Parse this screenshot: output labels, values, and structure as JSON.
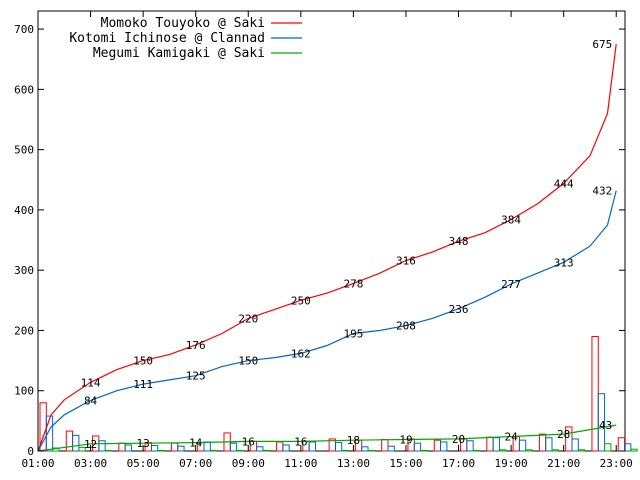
{
  "chart_data": {
    "type": "line",
    "title": "",
    "xlabel": "",
    "ylabel": "",
    "ylim": [
      0,
      730
    ],
    "yticks": [
      0,
      100,
      200,
      300,
      400,
      500,
      600,
      700
    ],
    "xticks": [
      "01:00",
      "03:00",
      "05:00",
      "07:00",
      "09:00",
      "11:00",
      "13:00",
      "15:00",
      "17:00",
      "19:00",
      "21:00",
      "23:00"
    ],
    "grid": false,
    "legend_position": "top-left",
    "series": [
      {
        "name": "Momoko Touyoko @ Saki",
        "color": "#ff0000",
        "cumulative": [
          {
            "t": "01:00",
            "v": 0
          },
          {
            "t": "01:30",
            "v": 60
          },
          {
            "t": "02:00",
            "v": 85
          },
          {
            "t": "03:00",
            "v": 114
          },
          {
            "t": "04:00",
            "v": 135
          },
          {
            "t": "05:00",
            "v": 150
          },
          {
            "t": "06:00",
            "v": 160
          },
          {
            "t": "07:00",
            "v": 176
          },
          {
            "t": "08:00",
            "v": 195
          },
          {
            "t": "09:00",
            "v": 220
          },
          {
            "t": "10:00",
            "v": 235
          },
          {
            "t": "11:00",
            "v": 250
          },
          {
            "t": "12:00",
            "v": 262
          },
          {
            "t": "13:00",
            "v": 278
          },
          {
            "t": "14:00",
            "v": 295
          },
          {
            "t": "15:00",
            "v": 316
          },
          {
            "t": "16:00",
            "v": 330
          },
          {
            "t": "17:00",
            "v": 348
          },
          {
            "t": "18:00",
            "v": 362
          },
          {
            "t": "19:00",
            "v": 384
          },
          {
            "t": "20:00",
            "v": 410
          },
          {
            "t": "21:00",
            "v": 444
          },
          {
            "t": "22:00",
            "v": 490
          },
          {
            "t": "22:40",
            "v": 560
          },
          {
            "t": "23:00",
            "v": 675
          }
        ],
        "hourly": [
          80,
          33,
          25,
          13,
          14,
          13,
          14,
          30,
          16,
          15,
          16,
          20,
          18,
          19,
          20,
          18,
          20,
          23,
          24,
          28,
          40,
          190,
          22
        ],
        "labels": [
          {
            "t": "03:00",
            "text": "114"
          },
          {
            "t": "05:00",
            "text": "150"
          },
          {
            "t": "07:00",
            "text": "176"
          },
          {
            "t": "09:00",
            "text": "220"
          },
          {
            "t": "11:00",
            "text": "250"
          },
          {
            "t": "13:00",
            "text": "278"
          },
          {
            "t": "15:00",
            "text": "316"
          },
          {
            "t": "17:00",
            "text": "348"
          },
          {
            "t": "19:00",
            "text": "384"
          },
          {
            "t": "21:00",
            "text": "444"
          },
          {
            "t": "23:00",
            "text": "675"
          }
        ]
      },
      {
        "name": "Kotomi Ichinose @ Clannad",
        "color": "#0066cc",
        "cumulative": [
          {
            "t": "01:00",
            "v": 0
          },
          {
            "t": "01:30",
            "v": 40
          },
          {
            "t": "02:00",
            "v": 60
          },
          {
            "t": "03:00",
            "v": 84
          },
          {
            "t": "04:00",
            "v": 100
          },
          {
            "t": "05:00",
            "v": 111
          },
          {
            "t": "06:00",
            "v": 118
          },
          {
            "t": "07:00",
            "v": 125
          },
          {
            "t": "08:00",
            "v": 140
          },
          {
            "t": "09:00",
            "v": 150
          },
          {
            "t": "10:00",
            "v": 155
          },
          {
            "t": "11:00",
            "v": 162
          },
          {
            "t": "12:00",
            "v": 175
          },
          {
            "t": "13:00",
            "v": 195
          },
          {
            "t": "14:00",
            "v": 200
          },
          {
            "t": "15:00",
            "v": 208
          },
          {
            "t": "16:00",
            "v": 220
          },
          {
            "t": "17:00",
            "v": 236
          },
          {
            "t": "18:00",
            "v": 255
          },
          {
            "t": "19:00",
            "v": 277
          },
          {
            "t": "20:00",
            "v": 295
          },
          {
            "t": "21:00",
            "v": 313
          },
          {
            "t": "22:00",
            "v": 340
          },
          {
            "t": "22:40",
            "v": 375
          },
          {
            "t": "23:00",
            "v": 432
          }
        ],
        "hourly": [
          58,
          26,
          17,
          10,
          9,
          8,
          15,
          13,
          7,
          10,
          15,
          14,
          7,
          8,
          13,
          15,
          17,
          22,
          18,
          22,
          20,
          95,
          12
        ],
        "labels": [
          {
            "t": "03:00",
            "text": "84"
          },
          {
            "t": "05:00",
            "text": "111"
          },
          {
            "t": "07:00",
            "text": "125"
          },
          {
            "t": "09:00",
            "text": "150"
          },
          {
            "t": "11:00",
            "text": "162"
          },
          {
            "t": "13:00",
            "text": "195"
          },
          {
            "t": "15:00",
            "text": "208"
          },
          {
            "t": "17:00",
            "text": "236"
          },
          {
            "t": "19:00",
            "text": "277"
          },
          {
            "t": "21:00",
            "text": "313"
          },
          {
            "t": "23:00",
            "text": "432"
          }
        ]
      },
      {
        "name": "Megumi Kamigaki @ Saki",
        "color": "#00aa00",
        "cumulative": [
          {
            "t": "01:00",
            "v": 0
          },
          {
            "t": "03:00",
            "v": 12
          },
          {
            "t": "05:00",
            "v": 13
          },
          {
            "t": "07:00",
            "v": 14
          },
          {
            "t": "09:00",
            "v": 16
          },
          {
            "t": "11:00",
            "v": 16
          },
          {
            "t": "13:00",
            "v": 18
          },
          {
            "t": "15:00",
            "v": 19
          },
          {
            "t": "17:00",
            "v": 20
          },
          {
            "t": "19:00",
            "v": 24
          },
          {
            "t": "21:00",
            "v": 28
          },
          {
            "t": "23:00",
            "v": 43
          }
        ],
        "hourly": [
          5,
          6,
          1,
          0,
          1,
          0,
          1,
          1,
          1,
          0,
          0,
          1,
          1,
          0,
          1,
          0,
          1,
          2,
          2,
          2,
          2,
          12,
          3
        ],
        "labels": [
          {
            "t": "03:00",
            "text": "12"
          },
          {
            "t": "05:00",
            "text": "13"
          },
          {
            "t": "07:00",
            "text": "14"
          },
          {
            "t": "09:00",
            "text": "16"
          },
          {
            "t": "11:00",
            "text": "16"
          },
          {
            "t": "13:00",
            "text": "18"
          },
          {
            "t": "15:00",
            "text": "19"
          },
          {
            "t": "17:00",
            "text": "20"
          },
          {
            "t": "19:00",
            "text": "24"
          },
          {
            "t": "21:00",
            "text": "28"
          },
          {
            "t": "23:00",
            "text": "43"
          }
        ]
      }
    ]
  }
}
